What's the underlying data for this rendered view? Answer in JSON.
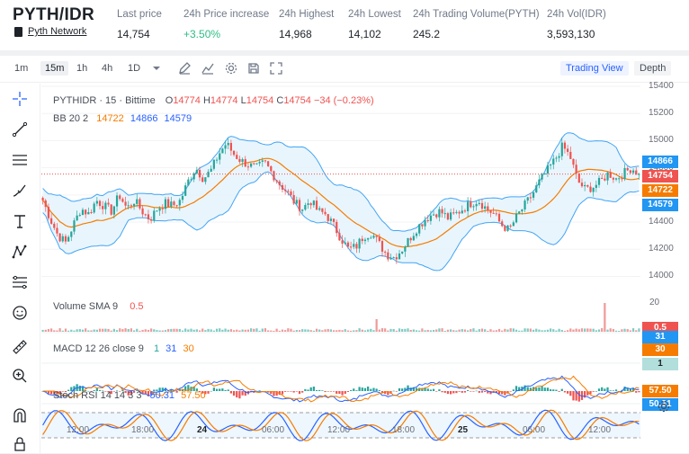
{
  "header": {
    "pair": "PYTH/IDR",
    "project_link": "Pyth Network",
    "stats": [
      {
        "label": "Last price",
        "value": "14,754",
        "up": false
      },
      {
        "label": "24h Price increase",
        "value": "+3.50%",
        "up": true
      },
      {
        "label": "24h Highest",
        "value": "14,968",
        "up": false
      },
      {
        "label": "24h Lowest",
        "value": "14,102",
        "up": false
      },
      {
        "label": "24h Trading Volume(PYTH)",
        "value": "245.2",
        "up": false
      },
      {
        "label": "24h Vol(IDR)",
        "value": "3,593,130",
        "up": false
      }
    ]
  },
  "toolbar": {
    "timeframes": [
      "1m",
      "15m",
      "1h",
      "4h",
      "1D"
    ],
    "active_timeframe": "15m",
    "views": [
      "Trading View",
      "Depth"
    ],
    "active_view": "Trading View"
  },
  "legend": {
    "symbol": "PYTHIDR · 15 · Bittime",
    "o_label": "O",
    "o": "14774",
    "h_label": "H",
    "h": "14774",
    "l_label": "L",
    "l": "14754",
    "c_label": "C",
    "c": "14754",
    "change": "−34 (−0.23%)",
    "bb_label": "BB 20 2",
    "bb_basis": "14722",
    "bb_upper": "14866",
    "bb_lower": "14579",
    "vol_label": "Volume SMA 9",
    "vol_val": "0.5",
    "macd_label": "MACD 12 26 close 9",
    "macd_hist": "1",
    "macd_line": "31",
    "macd_signal": "30",
    "rsi_label": "Stoch RSI 14 14 3 3",
    "rsi_k": "50.31",
    "rsi_d": "57.50"
  },
  "price_axis": [
    "15400",
    "15200",
    "15000",
    "14800",
    "14600",
    "14400",
    "14200",
    "14000"
  ],
  "volume_axis": [
    "20"
  ],
  "price_tags": {
    "upper": "14866",
    "last": "14754",
    "basis": "14722",
    "lower": "14579",
    "vol": "0.5",
    "macd_a": "31",
    "macd_b": "30",
    "macd_c": "1",
    "rsi_d": "57.50",
    "rsi_k": "50.31"
  },
  "time_axis": [
    "12:00",
    "18:00",
    "24",
    "06:00",
    "12:00",
    "18:00",
    "25",
    "06:00",
    "12:00"
  ],
  "colors": {
    "up": "#26a69a",
    "down": "#ef5350",
    "bb_band": "#42a5f5",
    "bb_basis": "#f57c00",
    "bb_fill": "#e3f2fd",
    "last_price": "#ef5350",
    "accent": "#2962ff"
  },
  "chart_data": {
    "type": "candlestick",
    "price_range": [
      13950,
      15420
    ],
    "candle_count": 210,
    "candles_close_path": [
      14560,
      14420,
      14300,
      14250,
      14380,
      14500,
      14460,
      14560,
      14520,
      14480,
      14600,
      14500,
      14560,
      14480,
      14420,
      14500,
      14540,
      14520,
      14560,
      14700,
      14800,
      14720,
      14780,
      14900,
      14980,
      14900,
      14850,
      14820,
      14800,
      14840,
      14760,
      14680,
      14620,
      14540,
      14500,
      14560,
      14480,
      14460,
      14380,
      14280,
      14200,
      14220,
      14300,
      14320,
      14240,
      14160,
      14140,
      14200,
      14280,
      14360,
      14420,
      14460,
      14480,
      14430,
      14460,
      14500,
      14540,
      14560,
      14500,
      14460,
      14380,
      14340,
      14440,
      14520,
      14600,
      14700,
      14780,
      14860,
      14960,
      14880,
      14700,
      14640,
      14660,
      14700,
      14760,
      14720,
      14760,
      14800,
      14754
    ]
  }
}
